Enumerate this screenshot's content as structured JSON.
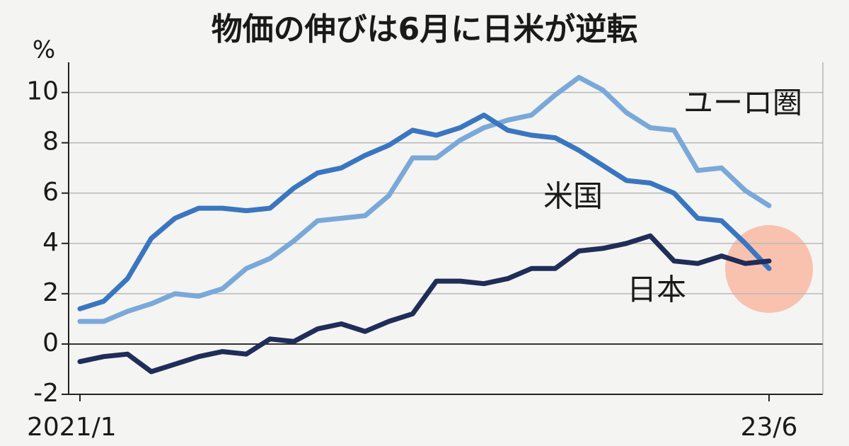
{
  "chart_data": {
    "type": "line",
    "title": "物価の伸びは6月に日米が逆転",
    "y_label": "%",
    "categories": [
      "2021/1",
      null,
      null,
      null,
      null,
      null,
      null,
      null,
      null,
      null,
      null,
      null,
      null,
      null,
      null,
      null,
      null,
      null,
      null,
      null,
      null,
      null,
      null,
      null,
      null,
      null,
      null,
      null,
      null,
      "23/6"
    ],
    "series": [
      {
        "name": "ユーロ圏",
        "color": "#7aa8d8",
        "values": [
          0.9,
          0.9,
          1.3,
          1.6,
          2.0,
          1.9,
          2.2,
          3.0,
          3.4,
          4.1,
          4.9,
          5.0,
          5.1,
          5.9,
          7.4,
          7.4,
          8.1,
          8.6,
          8.9,
          9.1,
          9.9,
          10.6,
          10.1,
          9.2,
          8.6,
          8.5,
          6.9,
          7.0,
          6.1,
          5.5
        ]
      },
      {
        "name": "米国",
        "color": "#3a76c0",
        "values": [
          1.4,
          1.7,
          2.6,
          4.2,
          5.0,
          5.4,
          5.4,
          5.3,
          5.4,
          6.2,
          6.8,
          7.0,
          7.5,
          7.9,
          8.5,
          8.3,
          8.6,
          9.1,
          8.5,
          8.3,
          8.2,
          7.7,
          7.1,
          6.5,
          6.4,
          6.0,
          5.0,
          4.9,
          4.0,
          3.0
        ]
      },
      {
        "name": "日本",
        "color": "#1f2d58",
        "values": [
          -0.7,
          -0.5,
          -0.4,
          -1.1,
          -0.8,
          -0.5,
          -0.3,
          -0.4,
          0.2,
          0.1,
          0.6,
          0.8,
          0.5,
          0.9,
          1.2,
          2.5,
          2.5,
          2.4,
          2.6,
          3.0,
          3.0,
          3.7,
          3.8,
          4.0,
          4.3,
          3.3,
          3.2,
          3.5,
          3.2,
          3.3
        ]
      }
    ],
    "ylim": [
      -2,
      11.2
    ],
    "yticks": [
      -2,
      0,
      2,
      4,
      6,
      8,
      10
    ],
    "grid": true
  }
}
